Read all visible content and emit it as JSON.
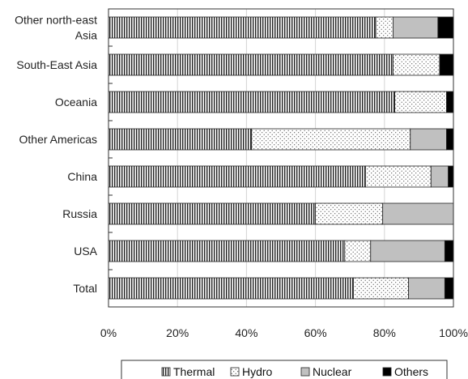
{
  "chart_data": {
    "type": "bar",
    "orientation": "horizontal",
    "stacked": true,
    "normalized": true,
    "title": "",
    "xlabel": "",
    "ylabel": "",
    "categories": [
      [
        "Other north-east",
        "Asia"
      ],
      [
        "South-East Asia"
      ],
      [
        "Oceania"
      ],
      [
        "Other Americas"
      ],
      [
        "China"
      ],
      [
        "Russia"
      ],
      [
        "USA"
      ],
      [
        "Total"
      ]
    ],
    "series": [
      {
        "name": "Thermal",
        "values": [
          77.5,
          82.5,
          83,
          41.5,
          74.5,
          60,
          68.5,
          71
        ],
        "pattern": "vertical-lines",
        "color": "#ffffff"
      },
      {
        "name": "Hydro",
        "values": [
          5,
          13.5,
          15,
          46,
          19,
          19.5,
          7.5,
          16
        ],
        "pattern": "dots",
        "color": "#ffffff"
      },
      {
        "name": "Nuclear",
        "values": [
          13,
          0,
          0,
          10.5,
          5,
          20.5,
          21.5,
          10.5
        ],
        "pattern": "solid",
        "color": "#c0c0c0"
      },
      {
        "name": "Others",
        "values": [
          4.5,
          4,
          2,
          2,
          1.5,
          0,
          2.5,
          2.5
        ],
        "pattern": "solid",
        "color": "#000000"
      }
    ],
    "xlim": [
      0,
      100
    ],
    "xticks": [
      "0%",
      "20%",
      "40%",
      "60%",
      "80%",
      "100%"
    ],
    "grid": "vertical",
    "legend": {
      "position": "bottom",
      "entries": [
        "Thermal",
        "Hydro",
        "Nuclear",
        "Others"
      ]
    }
  }
}
